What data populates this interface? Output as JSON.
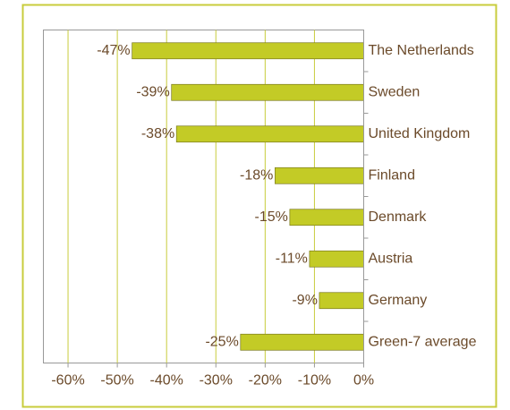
{
  "chart_data": {
    "type": "bar",
    "orientation": "horizontal",
    "categories": [
      "The Netherlands",
      "Sweden",
      "United Kingdom",
      "Finland",
      "Denmark",
      "Austria",
      "Germany",
      "Green-7 average"
    ],
    "values": [
      -47,
      -39,
      -38,
      -18,
      -15,
      -11,
      -9,
      -25
    ],
    "value_labels": [
      "-47%",
      "-39%",
      "-38%",
      "-18%",
      "-15%",
      "-11%",
      "-9%",
      "-25%"
    ],
    "color": "#c3cb26",
    "xlim": [
      -65,
      0
    ],
    "xticks": [
      {
        "value": -60,
        "label": "-60%"
      },
      {
        "value": -50,
        "label": "-50%"
      },
      {
        "value": -40,
        "label": "-40%"
      },
      {
        "value": -30,
        "label": "-30%"
      },
      {
        "value": -20,
        "label": "-20%"
      },
      {
        "value": -10,
        "label": "-10%"
      },
      {
        "value": 0,
        "label": "0%"
      }
    ],
    "grid": true
  }
}
